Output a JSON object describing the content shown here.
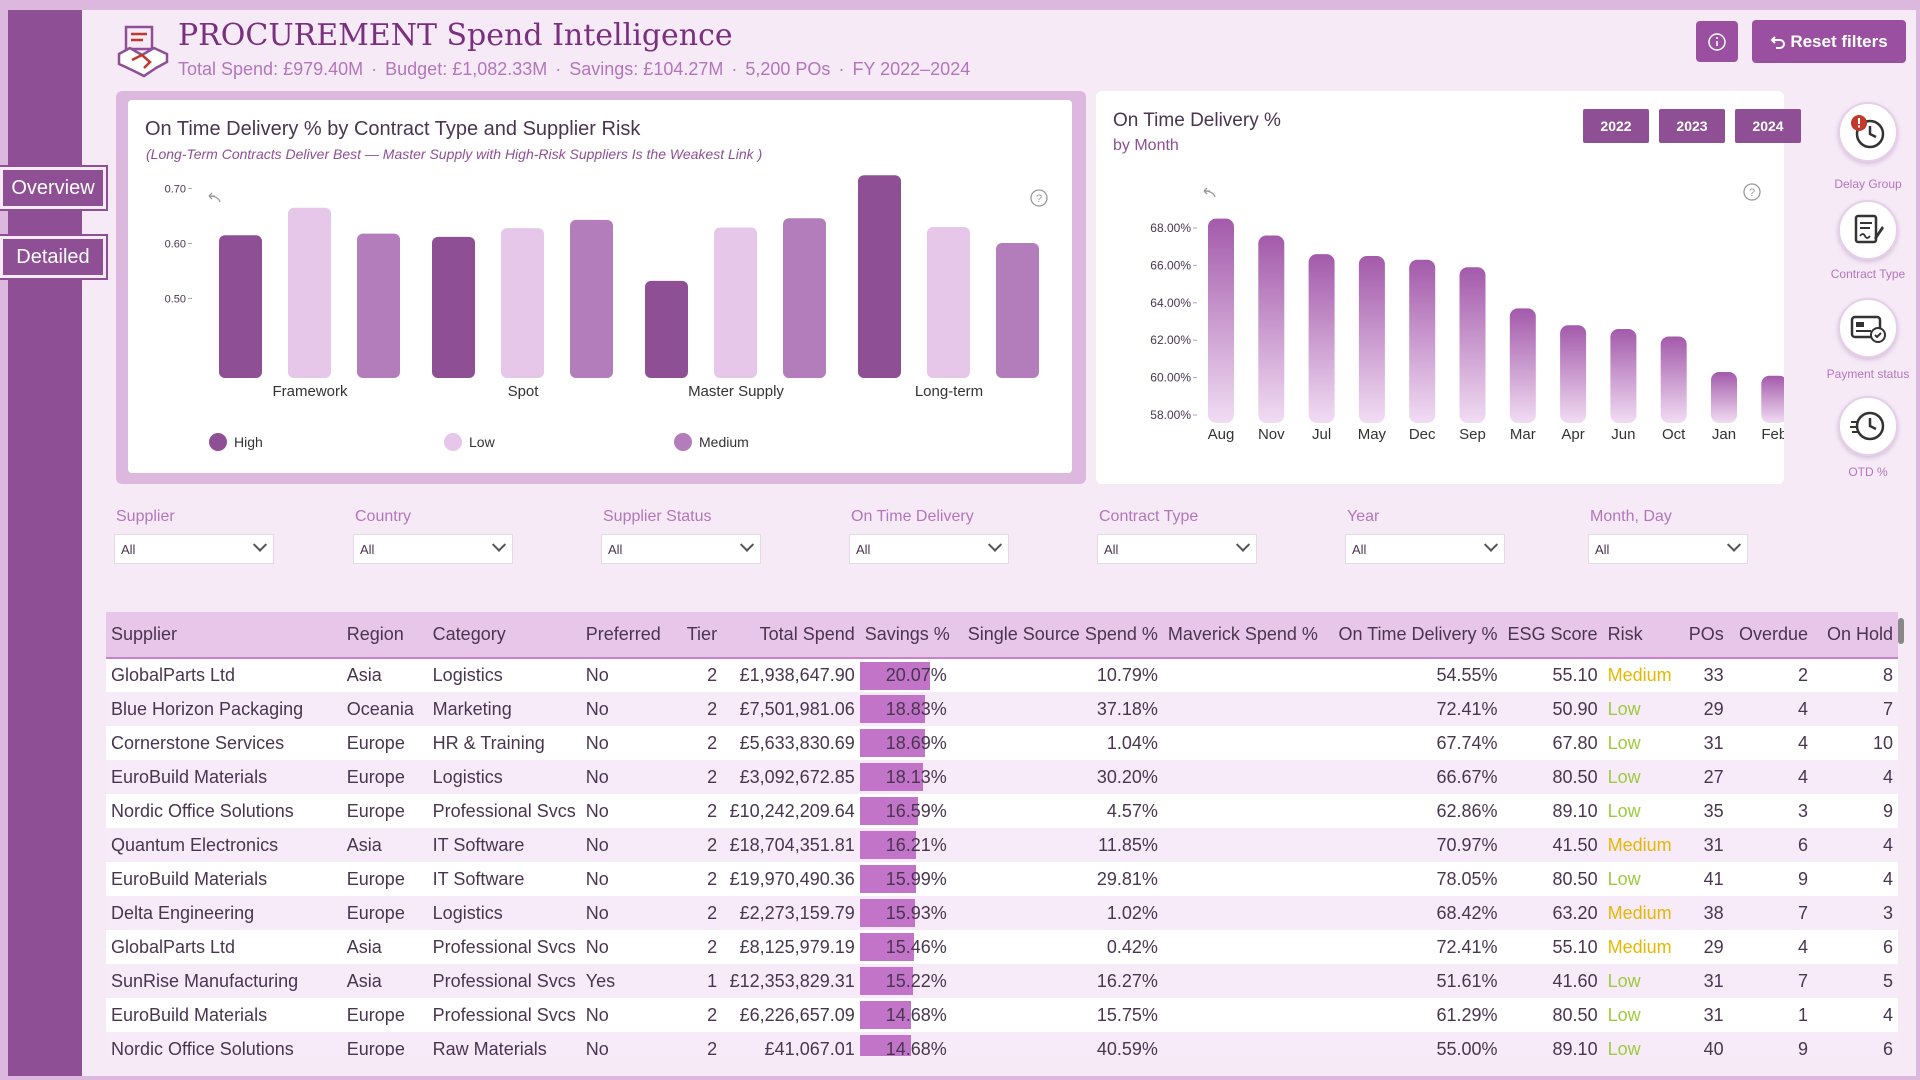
{
  "nav": {
    "overview": "Overview",
    "detailed": "Detailed"
  },
  "header": {
    "title": "PROCUREMENT Spend Intelligence",
    "kpis": [
      "Total Spend: £979.40M",
      "Budget: £1,082.33M",
      "Savings: £104.27M",
      "5,200 POs",
      "FY 2022–2024"
    ],
    "reset_label": "Reset filters"
  },
  "chart1": {
    "title": "On Time Delivery % by Contract Type and Supplier Risk",
    "subtitle": "(Long-Term Contracts Deliver Best — Master Supply with High-Risk Suppliers Is the Weakest Link )"
  },
  "chart2": {
    "title": "On Time Delivery %",
    "subtitle": "by Month",
    "years": [
      "2022",
      "2023",
      "2024"
    ]
  },
  "side_buttons": [
    {
      "label": "Delay Group",
      "icon": "clock-alert-icon"
    },
    {
      "label": "Contract Type",
      "icon": "contract-icon"
    },
    {
      "label": "Payment status",
      "icon": "payment-card-icon"
    },
    {
      "label": "OTD %",
      "icon": "history-clock-icon"
    }
  ],
  "slicers": [
    {
      "label": "Supplier",
      "value": "All"
    },
    {
      "label": "Country",
      "value": "All"
    },
    {
      "label": "Supplier Status",
      "value": "All"
    },
    {
      "label": "On Time Delivery",
      "value": "All"
    },
    {
      "label": "Contract Type",
      "value": "All"
    },
    {
      "label": "Year",
      "value": "All"
    },
    {
      "label": "Month, Day",
      "value": "All"
    }
  ],
  "chart_data": [
    {
      "type": "bar",
      "categories": [
        "Framework",
        "Spot",
        "Master Supply",
        "Long-term"
      ],
      "series": [
        {
          "name": "High",
          "values": [
            0.615,
            0.612,
            0.532,
            0.724
          ]
        },
        {
          "name": "Low",
          "values": [
            0.665,
            0.628,
            0.629,
            0.63
          ]
        },
        {
          "name": "Medium",
          "values": [
            0.618,
            0.643,
            0.646,
            0.601
          ]
        }
      ],
      "yticks": [
        "0.50",
        "0.60",
        "0.70"
      ],
      "ylim": [
        0.47,
        0.74
      ],
      "colors": {
        "High": "#8e4f95",
        "Low": "#e6c6e9",
        "Medium": "#b37cba"
      }
    },
    {
      "type": "bar",
      "categories": [
        "Aug",
        "Nov",
        "Jul",
        "May",
        "Dec",
        "Sep",
        "Mar",
        "Apr",
        "Jun",
        "Oct",
        "Jan",
        "Feb"
      ],
      "values": [
        68.5,
        67.6,
        66.6,
        66.5,
        66.3,
        65.9,
        63.7,
        62.8,
        62.6,
        62.2,
        60.3,
        60.1
      ],
      "yticks": [
        "58.00%",
        "60.00%",
        "62.00%",
        "64.00%",
        "66.00%",
        "68.00%"
      ],
      "ylim": [
        57.7,
        69.5
      ]
    }
  ],
  "table": {
    "columns": [
      "Supplier",
      "Region",
      "Category",
      "Preferred",
      "Tier",
      "Total Spend",
      "Savings %",
      "Single Source Spend %",
      "Maverick Spend %",
      "On Time Delivery %",
      "ESG Score",
      "Risk",
      "POs",
      "Overdue",
      "On Hold"
    ],
    "rows": [
      [
        "GlobalParts Ltd",
        "Asia",
        "Logistics",
        "No",
        "2",
        "£1,938,647.90",
        "20.07%",
        "10.79%",
        "",
        "54.55%",
        "55.10",
        "Medium",
        "33",
        "2",
        "8"
      ],
      [
        "Blue Horizon Packaging",
        "Oceania",
        "Marketing",
        "No",
        "2",
        "£7,501,981.06",
        "18.83%",
        "37.18%",
        "",
        "72.41%",
        "50.90",
        "Low",
        "29",
        "4",
        "7"
      ],
      [
        "Cornerstone Services",
        "Europe",
        "HR & Training",
        "No",
        "2",
        "£5,633,830.69",
        "18.69%",
        "1.04%",
        "",
        "67.74%",
        "67.80",
        "Low",
        "31",
        "4",
        "10"
      ],
      [
        "EuroBuild Materials",
        "Europe",
        "Logistics",
        "No",
        "2",
        "£3,092,672.85",
        "18.13%",
        "30.20%",
        "",
        "66.67%",
        "80.50",
        "Low",
        "27",
        "4",
        "4"
      ],
      [
        "Nordic Office Solutions",
        "Europe",
        "Professional Svcs",
        "No",
        "2",
        "£10,242,209.64",
        "16.59%",
        "4.57%",
        "",
        "62.86%",
        "89.10",
        "Low",
        "35",
        "3",
        "9"
      ],
      [
        "Quantum Electronics",
        "Asia",
        "IT Software",
        "No",
        "2",
        "£18,704,351.81",
        "16.21%",
        "11.85%",
        "",
        "70.97%",
        "41.50",
        "Medium",
        "31",
        "6",
        "4"
      ],
      [
        "EuroBuild Materials",
        "Europe",
        "IT Software",
        "No",
        "2",
        "£19,970,490.36",
        "15.99%",
        "29.81%",
        "",
        "78.05%",
        "80.50",
        "Low",
        "41",
        "9",
        "4"
      ],
      [
        "Delta Engineering",
        "Europe",
        "Logistics",
        "No",
        "2",
        "£2,273,159.79",
        "15.93%",
        "1.02%",
        "",
        "68.42%",
        "63.20",
        "Medium",
        "38",
        "7",
        "3"
      ],
      [
        "GlobalParts Ltd",
        "Asia",
        "Professional Svcs",
        "No",
        "2",
        "£8,125,979.19",
        "15.46%",
        "0.42%",
        "",
        "72.41%",
        "55.10",
        "Medium",
        "29",
        "4",
        "6"
      ],
      [
        "SunRise Manufacturing",
        "Asia",
        "Professional Svcs",
        "Yes",
        "1",
        "£12,353,829.31",
        "15.22%",
        "16.27%",
        "",
        "51.61%",
        "41.60",
        "Low",
        "31",
        "7",
        "5"
      ],
      [
        "EuroBuild Materials",
        "Europe",
        "Professional Svcs",
        "No",
        "2",
        "£6,226,657.09",
        "14.68%",
        "15.75%",
        "",
        "61.29%",
        "80.50",
        "Low",
        "31",
        "1",
        "4"
      ],
      [
        "Nordic Office Solutions",
        "Europe",
        "Raw Materials",
        "No",
        "2",
        "£41,067.01",
        "14.68%",
        "40.59%",
        "",
        "55.00%",
        "89.10",
        "Low",
        "40",
        "9",
        "6"
      ]
    ]
  },
  "colors": {
    "accent": "#8e4f95",
    "low": "#9ccb3c",
    "medium": "#e6b800"
  }
}
